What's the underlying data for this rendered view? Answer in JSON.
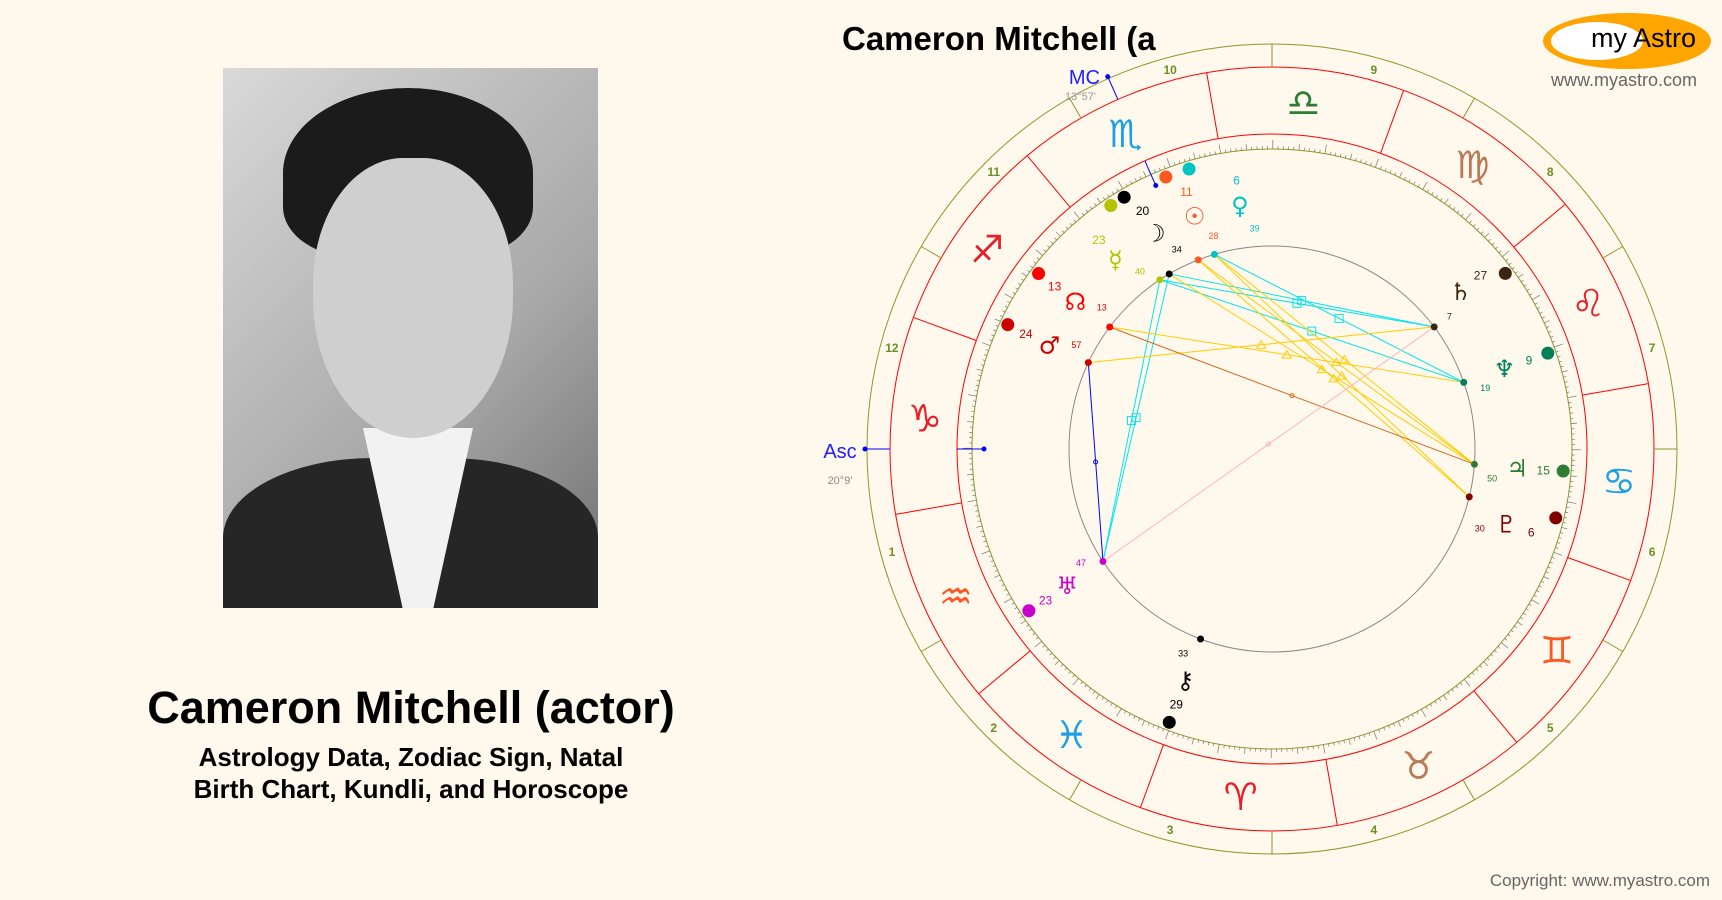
{
  "person": {
    "name": "Cameron Mitchell (actor)",
    "subtitle_line1": "Astrology Data, Zodiac Sign, Natal",
    "subtitle_line2": "Birth Chart, Kundli, and Horoscope"
  },
  "chart_title": "Cameron Mitchell (a",
  "logo": {
    "text": "my Astro",
    "url_text": "www.myastro.com"
  },
  "copyright": "Copyright: www.myastro.com",
  "chart": {
    "ascendant": {
      "label": "Asc",
      "degree_text": "20°9'",
      "longitude": 290.15
    },
    "midheaven": {
      "label": "MC",
      "degree_text": "13°57'",
      "longitude": 223.95
    },
    "house_system_display": "equal",
    "houses": [
      "1",
      "2",
      "3",
      "4",
      "5",
      "6",
      "7",
      "8",
      "9",
      "10",
      "11",
      "12"
    ],
    "signs": [
      {
        "name": "Aries",
        "glyph": "♈",
        "color": "#e8202a"
      },
      {
        "name": "Taurus",
        "glyph": "♉",
        "color": "#b97a57"
      },
      {
        "name": "Gemini",
        "glyph": "♊",
        "color": "#ff5722"
      },
      {
        "name": "Cancer",
        "glyph": "♋",
        "color": "#1ea0e6"
      },
      {
        "name": "Leo",
        "glyph": "♌",
        "color": "#e8202a"
      },
      {
        "name": "Virgo",
        "glyph": "♍",
        "color": "#b97a57"
      },
      {
        "name": "Libra",
        "glyph": "♎",
        "color": "#2e7d32"
      },
      {
        "name": "Scorpio",
        "glyph": "♏",
        "color": "#1ea0e6"
      },
      {
        "name": "Sagittarius",
        "glyph": "♐",
        "color": "#e8202a"
      },
      {
        "name": "Capricorn",
        "glyph": "♑",
        "color": "#e8202a"
      },
      {
        "name": "Aquarius",
        "glyph": "♒",
        "color": "#ff5722"
      },
      {
        "name": "Pisces",
        "glyph": "♓",
        "color": "#1ea0e6"
      }
    ],
    "planets": [
      {
        "id": "sun",
        "glyph": "☉",
        "deg": "11",
        "min": "28",
        "longitude": 221.47,
        "color": "#ff5722"
      },
      {
        "id": "venus",
        "glyph": "♀",
        "deg": "6",
        "min": "39",
        "longitude": 216.65,
        "color": "#00c4c4"
      },
      {
        "id": "moon",
        "glyph": "☽",
        "deg": "20",
        "min": "34",
        "longitude": 230.57,
        "color": "#000000"
      },
      {
        "id": "mercury",
        "glyph": "☿",
        "deg": "23",
        "min": "40",
        "longitude": 233.67,
        "color": "#b5c200"
      },
      {
        "id": "node",
        "glyph": "☊",
        "deg": "13",
        "min": "13",
        "longitude": 253.22,
        "color": "#ff0000"
      },
      {
        "id": "mars",
        "glyph": "♂",
        "deg": "24",
        "min": "57",
        "longitude": 264.95,
        "color": "#cc0000"
      },
      {
        "id": "uranus",
        "glyph": "♅",
        "deg": "23",
        "min": "47",
        "longitude": 323.78,
        "color": "#cc00cc"
      },
      {
        "id": "chiron",
        "glyph": "⚷",
        "deg": "29",
        "min": "33",
        "longitude": 359.55,
        "color": "#000000"
      },
      {
        "id": "pluto",
        "glyph": "♇",
        "deg": "6",
        "min": "30",
        "longitude": 96.5,
        "color": "#800000"
      },
      {
        "id": "jupiter",
        "glyph": "♃",
        "deg": "15",
        "min": "50",
        "longitude": 105.83,
        "color": "#2e7d32"
      },
      {
        "id": "neptune",
        "glyph": "♆",
        "deg": "9",
        "min": "19",
        "longitude": 129.32,
        "color": "#00805a"
      },
      {
        "id": "saturn",
        "glyph": "♄",
        "deg": "27",
        "min": "7",
        "longitude": 147.12,
        "color": "#3b2410"
      }
    ],
    "aspects": [
      {
        "a": "venus",
        "b": "neptune",
        "type": "square",
        "color": "#00e5ee"
      },
      {
        "a": "moon",
        "b": "saturn",
        "type": "square",
        "color": "#00e5ee"
      },
      {
        "a": "mercury",
        "b": "saturn",
        "type": "square",
        "color": "#00e5ee"
      },
      {
        "a": "moon",
        "b": "uranus",
        "type": "square",
        "color": "#00e5ee"
      },
      {
        "a": "mercury",
        "b": "uranus",
        "type": "square",
        "color": "#00e5ee"
      },
      {
        "a": "mercury",
        "b": "neptune",
        "type": "square",
        "color": "#00e5ee"
      },
      {
        "a": "sun",
        "b": "jupiter",
        "type": "trine",
        "color": "#ffcc00"
      },
      {
        "a": "sun",
        "b": "pluto",
        "type": "trine",
        "color": "#ffcc00"
      },
      {
        "a": "venus",
        "b": "jupiter",
        "type": "trine",
        "color": "#ffcc00"
      },
      {
        "a": "venus",
        "b": "pluto",
        "type": "trine",
        "color": "#ffcc00"
      },
      {
        "a": "moon",
        "b": "jupiter",
        "type": "trine",
        "color": "#ffcc00"
      },
      {
        "a": "mars",
        "b": "saturn",
        "type": "trine",
        "color": "#ffcc00"
      },
      {
        "a": "node",
        "b": "neptune",
        "type": "trine",
        "color": "#ffcc00"
      },
      {
        "a": "node",
        "b": "jupiter",
        "type": "quincunx",
        "color": "#d2691e"
      },
      {
        "a": "mars",
        "b": "uranus",
        "type": "sextile",
        "color": "#0000ff"
      },
      {
        "a": "uranus",
        "b": "saturn",
        "type": "opposition",
        "color": "#ffb6c1"
      }
    ]
  }
}
